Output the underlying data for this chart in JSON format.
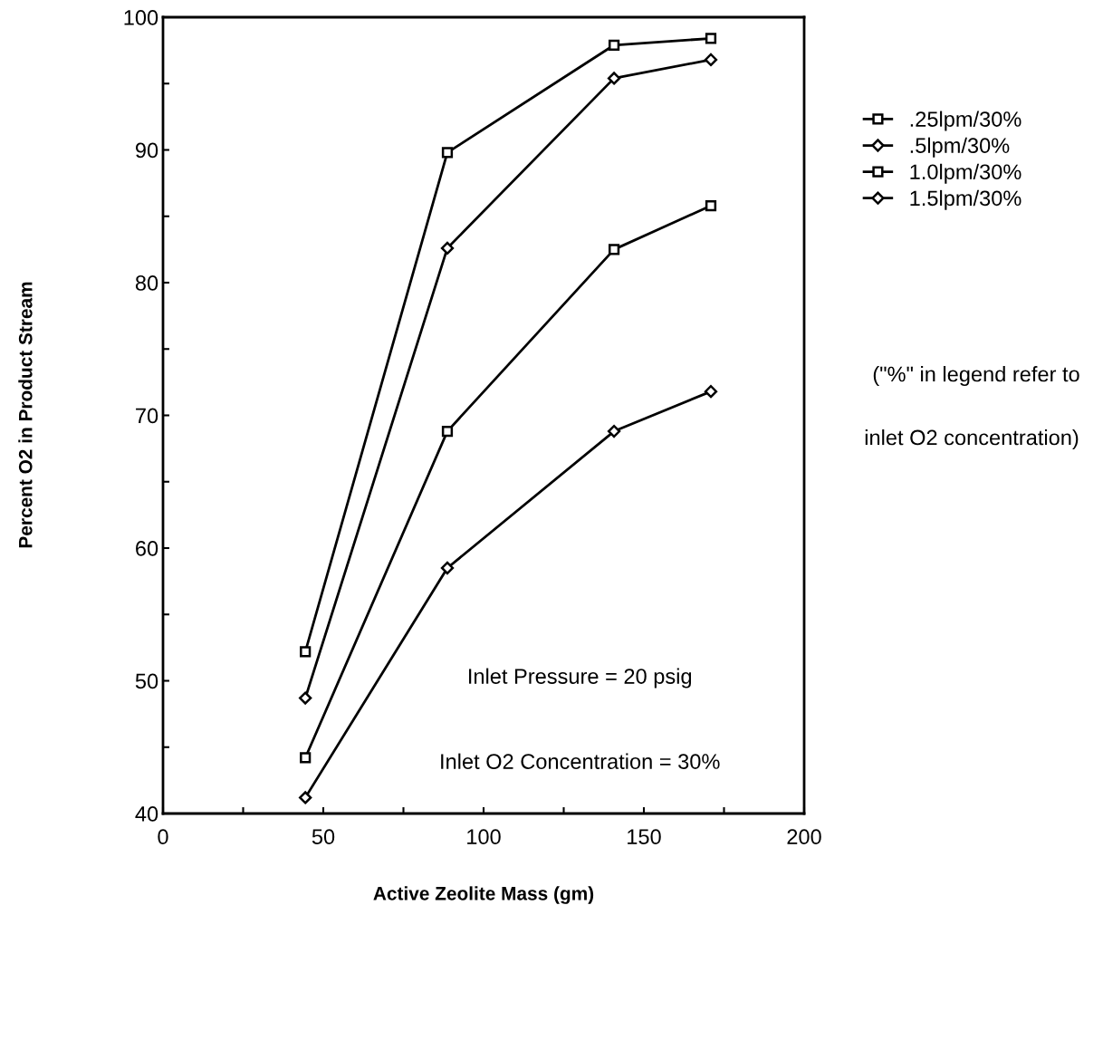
{
  "chart_data": {
    "type": "line",
    "xlabel": "Active Zeolite Mass (gm)",
    "ylabel": "Percent O2 in Product Stream",
    "x": [
      44.4,
      88.7,
      140.7,
      170.9
    ],
    "series": [
      {
        "name": ".25lpm/30%",
        "color": "#000000",
        "marker": "square",
        "values": [
          52.2,
          89.8,
          97.9,
          98.4
        ]
      },
      {
        "name": ".5lpm/30%",
        "color": "#000000",
        "marker": "diamond",
        "values": [
          48.7,
          82.6,
          95.4,
          96.8
        ]
      },
      {
        "name": "1.0lpm/30%",
        "color": "#000000",
        "marker": "square",
        "values": [
          44.2,
          68.8,
          82.5,
          85.8
        ]
      },
      {
        "name": "1.5lpm/30%",
        "color": "#000000",
        "marker": "diamond",
        "values": [
          41.2,
          58.5,
          68.8,
          71.8
        ]
      }
    ],
    "xlim": [
      0,
      200
    ],
    "ylim": [
      40,
      100
    ],
    "xticks": [
      0,
      {
        "value": 25,
        "label": null
      },
      50,
      {
        "value": 75,
        "label": null
      },
      100,
      {
        "value": 125,
        "label": null
      },
      150,
      {
        "value": 175,
        "label": null
      },
      200
    ],
    "yticks": [
      40,
      {
        "value": 45,
        "label": null
      },
      50,
      {
        "value": 55,
        "label": null
      },
      60,
      {
        "value": 65,
        "label": null
      },
      70,
      {
        "value": 75,
        "label": null
      },
      80,
      {
        "value": 85,
        "label": null
      },
      90,
      {
        "value": 95,
        "label": null
      },
      100
    ],
    "annotations": [
      "Inlet Pressure = 20 psig",
      "Inlet O2 Concentration = 30%",
      "(\"%\" in legend refer to",
      "inlet O2 concentration)"
    ],
    "grid": false,
    "legend": "right",
    "line_style": "solid"
  }
}
